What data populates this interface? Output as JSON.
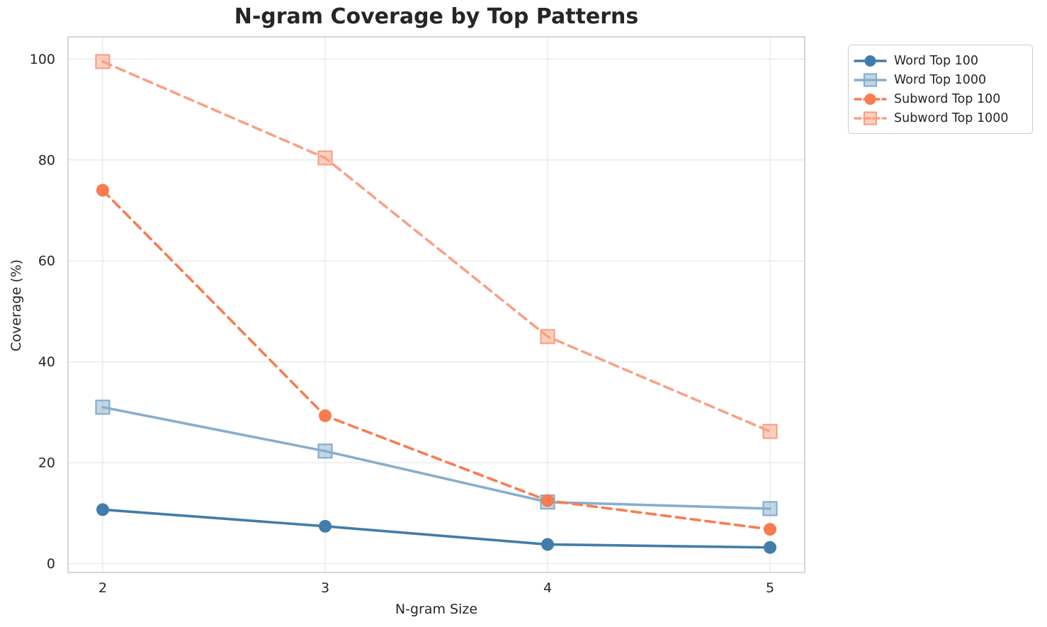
{
  "chart_data": {
    "type": "line",
    "title": "N-gram Coverage by Top Patterns",
    "xlabel": "N-gram Size",
    "ylabel": "Coverage (%)",
    "x": [
      2,
      3,
      4,
      5
    ],
    "xticks": [
      "2",
      "3",
      "4",
      "5"
    ],
    "yticks": [
      0,
      20,
      40,
      60,
      80,
      100
    ],
    "xlim": [
      1.844,
      5.156
    ],
    "ylim": [
      -1.75,
      104.4
    ],
    "grid": true,
    "legend_position": "upper right outside plot",
    "series": [
      {
        "name": "Word Top 100",
        "marker": "circle",
        "line_style": "solid",
        "color": "#417daa",
        "values": [
          10.7,
          7.4,
          3.8,
          3.2
        ]
      },
      {
        "name": "Word Top 1000",
        "marker": "square",
        "line_style": "solid",
        "color": "#87aecd",
        "values": [
          31.0,
          22.3,
          12.2,
          10.9
        ]
      },
      {
        "name": "Subword Top 100",
        "marker": "circle",
        "line_style": "dashed",
        "color": "#f87c4e",
        "values": [
          74.0,
          29.3,
          12.5,
          6.8
        ]
      },
      {
        "name": "Subword Top 1000",
        "marker": "square",
        "line_style": "dashed",
        "color": "#f9a183",
        "values": [
          99.5,
          80.4,
          45.0,
          26.2
        ]
      }
    ],
    "style": {
      "grid_color": "#e7e7e7",
      "spine_color": "#cccccc",
      "text_color": "#262626",
      "background": "#ffffff"
    }
  }
}
